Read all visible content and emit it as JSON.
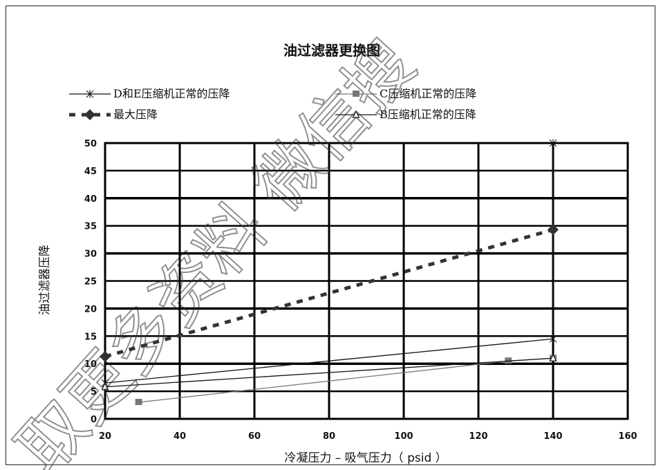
{
  "chart_data": {
    "type": "line",
    "title": "油过滤器更换图",
    "xlabel": "冷凝压力 – 吸气压力（ psid ）",
    "ylabel": "油过滤器压降",
    "xlim": [
      20,
      160
    ],
    "ylim": [
      0,
      50
    ],
    "x_ticks": [
      20,
      40,
      60,
      80,
      100,
      120,
      140,
      160
    ],
    "y_ticks": [
      0,
      5,
      10,
      15,
      20,
      25,
      30,
      35,
      40,
      45,
      50
    ],
    "grid": true,
    "legend_position": "top",
    "series": [
      {
        "name": "D和E压缩机正常的压降",
        "style": "thin-line-star",
        "color": "#111111",
        "x": [
          20,
          140,
          140
        ],
        "y": [
          6.5,
          14.5,
          50
        ]
      },
      {
        "name": "C压缩机正常的压降",
        "style": "line-square",
        "color": "#777777",
        "x": [
          29,
          128,
          140
        ],
        "y": [
          3,
          10.5,
          11
        ]
      },
      {
        "name": "最大压降",
        "style": "dashed-thick-diamond",
        "color": "#333333",
        "x": [
          20,
          140
        ],
        "y": [
          11.3,
          34.3
        ]
      },
      {
        "name": "B压缩机正常的压降",
        "style": "line-triangle",
        "color": "#111111",
        "x": [
          20,
          140
        ],
        "y": [
          5.8,
          11
        ]
      }
    ]
  },
  "watermark": {
    "text": "取更多资料 微信搜"
  }
}
